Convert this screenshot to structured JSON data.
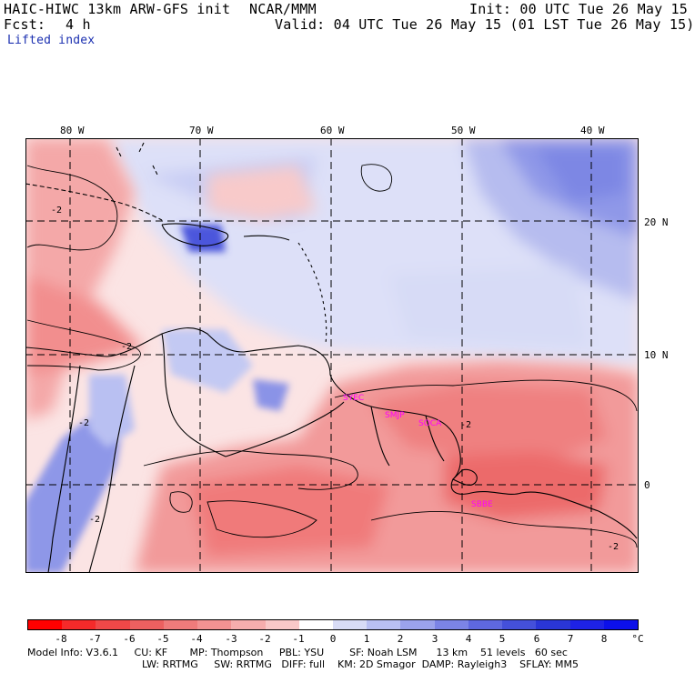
{
  "header": {
    "model": "HAIC-HIWC 13km ARW-GFS init",
    "org": "NCAR/MMM",
    "init": "Init: 00 UTC Tue 26 May 15",
    "fcst_label": "Fcst:",
    "fcst_value": "4 h",
    "valid": "Valid: 04 UTC Tue 26 May 15 (01 LST Tue 26 May 15)",
    "field": "Lifted index"
  },
  "map": {
    "longitude_labels": [
      "80 W",
      "70 W",
      "60 W",
      "50 W",
      "40 W"
    ],
    "latitude_labels": [
      "20 N",
      "10 N",
      "0"
    ],
    "stations": [
      "SYEC",
      "SMJP",
      "SOCA",
      "SBBE"
    ],
    "contour_labels": [
      "-2",
      "-2",
      "-2",
      "-2",
      "-2",
      "-2"
    ],
    "colors": {
      "coast": "#000000",
      "grid": "#000000",
      "station": "#ff00ff"
    }
  },
  "colorbar": {
    "ticks": [
      "-8",
      "-7",
      "-6",
      "-5",
      "-4",
      "-3",
      "-2",
      "-1",
      "0",
      "1",
      "2",
      "3",
      "4",
      "5",
      "6",
      "7",
      "8"
    ],
    "unit": "°C",
    "colors": [
      "#ff0000",
      "#f52a2a",
      "#f04848",
      "#ec6060",
      "#ef7b7b",
      "#f29292",
      "#f6adad",
      "#f9c8c8",
      "#ffffff",
      "#d8dcf6",
      "#b9c0f2",
      "#9ba3ec",
      "#7b84e6",
      "#5e68e0",
      "#4450da",
      "#2a36d6",
      "#1e22e6",
      "#0c10ea"
    ]
  },
  "footer": {
    "line1": "Model Info: V3.6.1     CU: KF       MP: Thompson     PBL: YSU        SF: Noah LSM      13 km    51 levels   60 sec",
    "line2": "LW: RRTMG     SW: RRTMG   DIFF: full    KM: 2D Smagor  DAMP: Rayleigh3    SFLAY: MM5"
  }
}
